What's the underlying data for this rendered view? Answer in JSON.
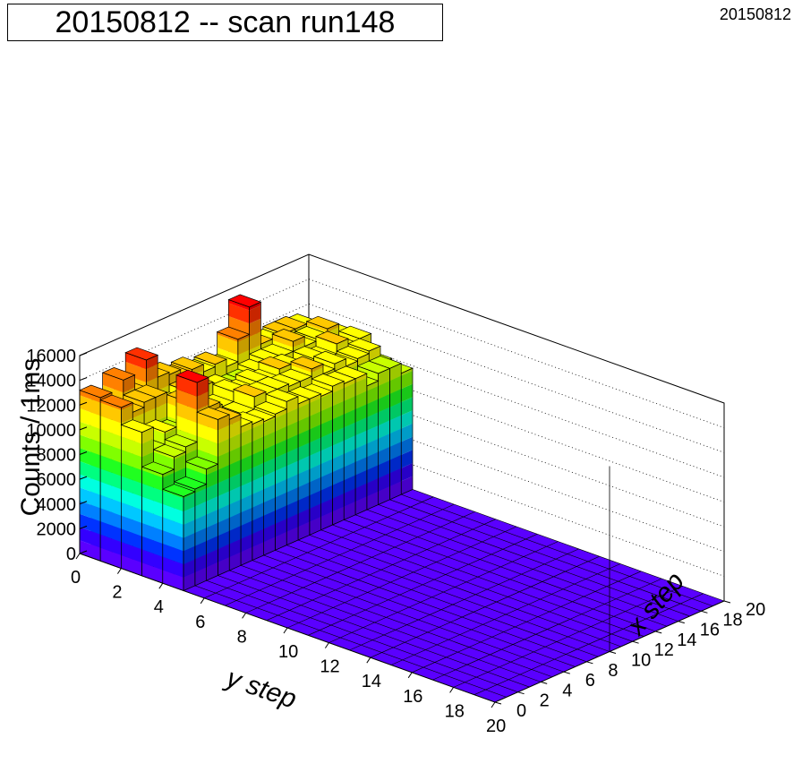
{
  "title": "20150812 -- scan run148",
  "corner_label": "20150812",
  "chart_data": {
    "type": "lego3d",
    "title": "20150812 -- scan run148",
    "xlabel": "x step",
    "ylabel": "y step",
    "zlabel": "Counts / 1ms",
    "x_range": [
      0,
      20
    ],
    "y_range": [
      0,
      20
    ],
    "zlim": [
      0,
      16000
    ],
    "x_ticks": [
      "0",
      "2",
      "4",
      "6",
      "8",
      "10",
      "12",
      "14",
      "16",
      "18",
      "20"
    ],
    "y_ticks": [
      "0",
      "2",
      "4",
      "6",
      "8",
      "10",
      "12",
      "14",
      "16",
      "18",
      "20"
    ],
    "z_ticks": [
      "0",
      "2000",
      "4000",
      "6000",
      "8000",
      "10000",
      "12000",
      "14000",
      "16000"
    ],
    "grid": true,
    "palette": [
      "#5a00ff",
      "#3300ff",
      "#0033ff",
      "#0080ff",
      "#00c8ff",
      "#00ffe0",
      "#00ff80",
      "#20ff20",
      "#80ff00",
      "#c8ff00",
      "#ffff00",
      "#ffc800",
      "#ff8000",
      "#ff3000",
      "#ff0000"
    ],
    "floor_color": "#5a00ff",
    "counts": [
      [
        13200,
        13000,
        11600,
        8800,
        7600,
        0,
        0,
        0,
        0,
        0,
        0,
        0,
        0,
        0,
        0,
        0,
        0,
        0,
        0,
        0
      ],
      [
        12000,
        12200,
        9800,
        9800,
        7800,
        0,
        0,
        0,
        0,
        0,
        0,
        0,
        0,
        0,
        0,
        0,
        0,
        0,
        0,
        0
      ],
      [
        13800,
        12600,
        10800,
        10200,
        9000,
        0,
        0,
        0,
        0,
        0,
        0,
        0,
        0,
        0,
        0,
        0,
        0,
        0,
        0,
        0
      ],
      [
        12400,
        12600,
        10400,
        15000,
        12600,
        0,
        0,
        0,
        0,
        0,
        0,
        0,
        0,
        0,
        0,
        0,
        0,
        0,
        0,
        0
      ],
      [
        14600,
        11200,
        12400,
        12600,
        12200,
        0,
        0,
        0,
        0,
        0,
        0,
        0,
        0,
        0,
        0,
        0,
        0,
        0,
        0,
        0
      ],
      [
        12800,
        11200,
        11000,
        11200,
        11200,
        0,
        0,
        0,
        0,
        0,
        0,
        0,
        0,
        0,
        0,
        0,
        0,
        0,
        0,
        0
      ],
      [
        12600,
        11800,
        11000,
        10600,
        11000,
        0,
        0,
        0,
        0,
        0,
        0,
        0,
        0,
        0,
        0,
        0,
        0,
        0,
        0,
        0
      ],
      [
        12000,
        11800,
        10800,
        10800,
        10800,
        0,
        0,
        0,
        0,
        0,
        0,
        0,
        0,
        0,
        0,
        0,
        0,
        0,
        0,
        0
      ],
      [
        12200,
        10800,
        11600,
        11800,
        11000,
        0,
        0,
        0,
        0,
        0,
        0,
        0,
        0,
        0,
        0,
        0,
        0,
        0,
        0,
        0
      ],
      [
        11600,
        11000,
        11200,
        11600,
        11600,
        0,
        0,
        0,
        0,
        0,
        0,
        0,
        0,
        0,
        0,
        0,
        0,
        0,
        0,
        0
      ],
      [
        11800,
        10600,
        11600,
        11600,
        11000,
        0,
        0,
        0,
        0,
        0,
        0,
        0,
        0,
        0,
        0,
        0,
        0,
        0,
        0,
        0
      ],
      [
        11200,
        10600,
        11200,
        11400,
        11000,
        0,
        0,
        0,
        0,
        0,
        0,
        0,
        0,
        0,
        0,
        0,
        0,
        0,
        0,
        0
      ],
      [
        13000,
        11000,
        11800,
        11400,
        10800,
        0,
        0,
        0,
        0,
        0,
        0,
        0,
        0,
        0,
        0,
        0,
        0,
        0,
        0,
        0
      ],
      [
        15200,
        11400,
        11600,
        12000,
        11200,
        0,
        0,
        0,
        0,
        0,
        0,
        0,
        0,
        0,
        0,
        0,
        0,
        0,
        0,
        0
      ],
      [
        11800,
        11400,
        10400,
        11200,
        11000,
        0,
        0,
        0,
        0,
        0,
        0,
        0,
        0,
        0,
        0,
        0,
        0,
        0,
        0,
        0
      ],
      [
        11600,
        12200,
        11400,
        11600,
        11000,
        0,
        0,
        0,
        0,
        0,
        0,
        0,
        0,
        0,
        0,
        0,
        0,
        0,
        0,
        0
      ],
      [
        11800,
        11400,
        11000,
        11000,
        10000,
        0,
        0,
        0,
        0,
        0,
        0,
        0,
        0,
        0,
        0,
        0,
        0,
        0,
        0,
        0
      ],
      [
        11800,
        11600,
        11800,
        11200,
        10600,
        0,
        0,
        0,
        0,
        0,
        0,
        0,
        0,
        0,
        0,
        0,
        0,
        0,
        0,
        0
      ],
      [
        11600,
        12000,
        11000,
        11400,
        10600,
        0,
        0,
        0,
        0,
        0,
        0,
        0,
        0,
        0,
        0,
        0,
        0,
        0,
        0,
        0
      ],
      [
        10800,
        11200,
        11400,
        10000,
        9800,
        0,
        0,
        0,
        0,
        0,
        0,
        0,
        0,
        0,
        0,
        0,
        0,
        0,
        0,
        0
      ]
    ]
  }
}
